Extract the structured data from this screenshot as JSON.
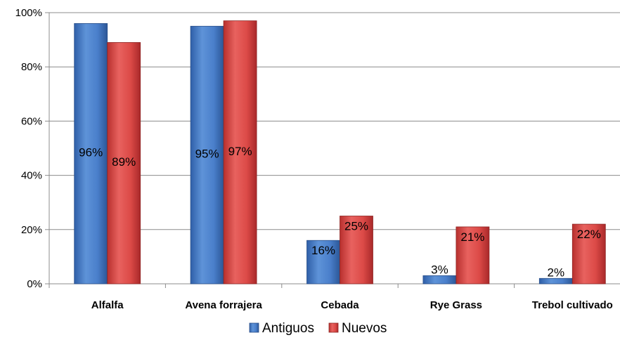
{
  "chart_data": {
    "type": "bar",
    "categories": [
      "Alfalfa",
      "Avena forrajera",
      "Cebada",
      "Rye Grass",
      "Trebol cultivado"
    ],
    "series": [
      {
        "name": "Antiguos",
        "values": [
          96,
          95,
          16,
          3,
          2
        ],
        "labels": [
          "96%",
          "95%",
          "16%",
          "3%",
          "2%"
        ]
      },
      {
        "name": "Nuevos",
        "values": [
          89,
          97,
          25,
          21,
          22
        ],
        "labels": [
          "89%",
          "97%",
          "25%",
          "21%",
          "22%"
        ]
      }
    ],
    "yticks": [
      "0%",
      "20%",
      "40%",
      "60%",
      "80%",
      "100%"
    ],
    "ylim": [
      0,
      100
    ],
    "grid": true,
    "legend": "bottom",
    "colors": {
      "Antiguos": "#4472c4",
      "Nuevos": "#d9403e"
    }
  }
}
